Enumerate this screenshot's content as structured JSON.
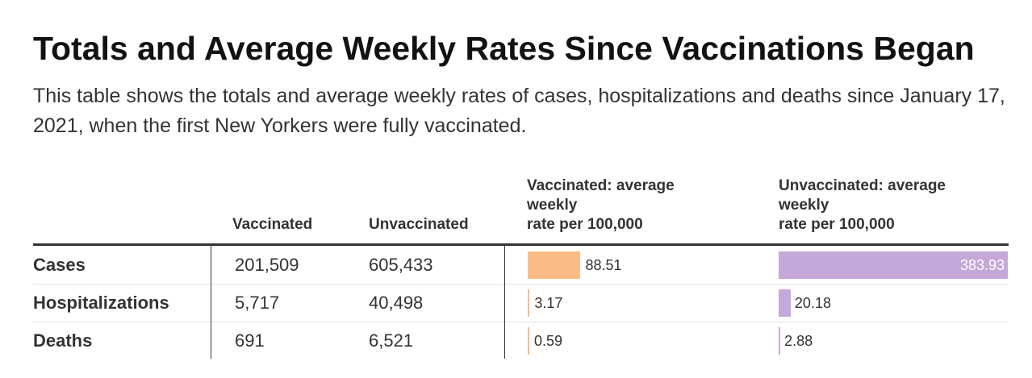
{
  "title": "Totals and Average Weekly Rates Since Vaccinations Began",
  "subtitle": "This table shows the totals and average weekly rates of cases, hospitalizations and deaths since January 17, 2021, when the first New Yorkers were fully vaccinated.",
  "colors": {
    "vaccinated_bar": "#fbbb85",
    "unvaccinated_bar": "#c4a8d9",
    "text": "#333333"
  },
  "chart_data": {
    "type": "table",
    "columns": [
      "",
      "Vaccinated",
      "Unvaccinated",
      "Vaccinated: average weekly rate per 100,000",
      "Unvaccinated: average weekly rate per 100,000"
    ],
    "header_lines": {
      "vacc_rate": [
        "Vaccinated: average",
        "weekly",
        "rate per 100,000"
      ],
      "unvacc_rate": [
        "Unvaccinated: average",
        "weekly",
        "rate per 100,000"
      ]
    },
    "rows": [
      {
        "label": "Cases",
        "vaccinated": "201,509",
        "unvaccinated": "605,433",
        "vacc_rate": 88.51,
        "vacc_rate_label": "88.51",
        "unvacc_rate": 383.93,
        "unvacc_rate_label": "383.93"
      },
      {
        "label": "Hospitalizations",
        "vaccinated": "5,717",
        "unvaccinated": "40,498",
        "vacc_rate": 3.17,
        "vacc_rate_label": "3.17",
        "unvacc_rate": 20.18,
        "unvacc_rate_label": "20.18"
      },
      {
        "label": "Deaths",
        "vaccinated": "691",
        "unvaccinated": "6,521",
        "vacc_rate": 0.59,
        "vacc_rate_label": "0.59",
        "unvacc_rate": 2.88,
        "unvacc_rate_label": "2.88"
      }
    ],
    "bar_scale_max": 383.93
  }
}
